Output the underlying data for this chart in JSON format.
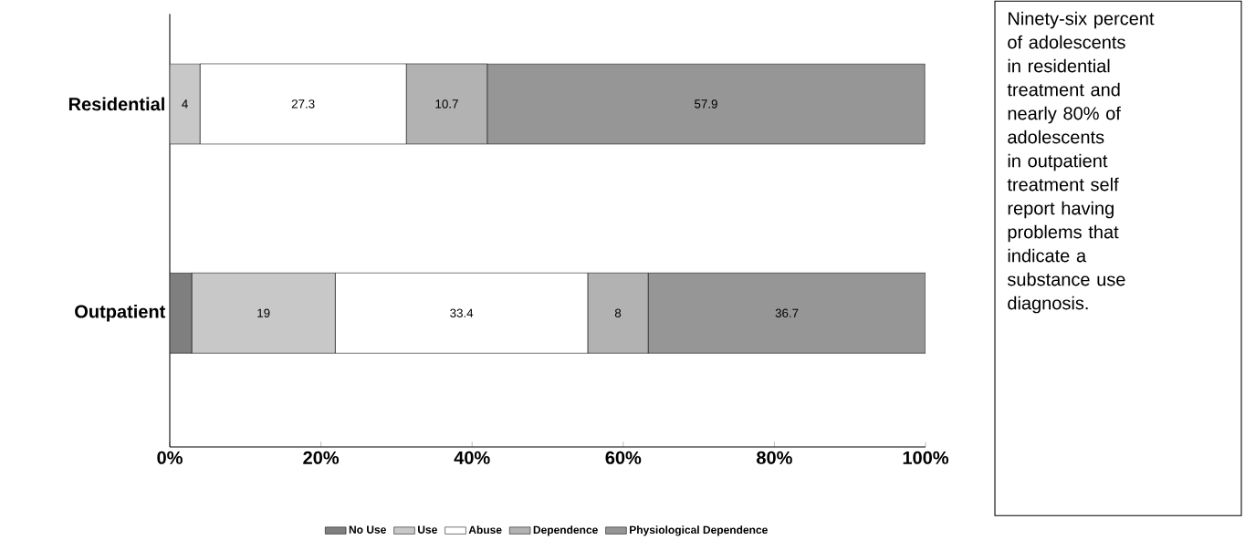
{
  "chart_data": {
    "type": "bar",
    "orientation": "horizontal",
    "stacked": true,
    "categories": [
      "Residential",
      "Outpatient"
    ],
    "series": [
      {
        "name": "No Use",
        "color": "#7f7f7f",
        "values": [
          0,
          2.9
        ]
      },
      {
        "name": "Use",
        "color": "#c8c8c8",
        "values": [
          4,
          19
        ],
        "value_labels": [
          "4",
          "19"
        ]
      },
      {
        "name": "Abuse",
        "color": "#ffffff",
        "values": [
          27.3,
          33.4
        ],
        "value_labels": [
          "27.3",
          "33.4"
        ]
      },
      {
        "name": "Dependence",
        "color": "#b2b2b2",
        "values": [
          10.7,
          8
        ],
        "value_labels": [
          "10.7",
          "8"
        ]
      },
      {
        "name": "Physiological Dependence",
        "color": "#969696",
        "values": [
          57.9,
          36.7
        ],
        "value_labels": [
          "57.9",
          "36.7"
        ]
      }
    ],
    "xlim": [
      0,
      100
    ],
    "xticks": [
      {
        "value": 0,
        "label": "0%"
      },
      {
        "value": 20,
        "label": "20%"
      },
      {
        "value": 40,
        "label": "40%"
      },
      {
        "value": 60,
        "label": "60%"
      },
      {
        "value": 80,
        "label": "80%"
      },
      {
        "value": 100,
        "label": "100%"
      }
    ],
    "legend": "bottom",
    "annotations": [
      "Ninety-six percent of adolescents in residential treatment and nearly 80% of adolescents in outpatient treatment self report having problems that indicate a substance use diagnosis."
    ]
  }
}
